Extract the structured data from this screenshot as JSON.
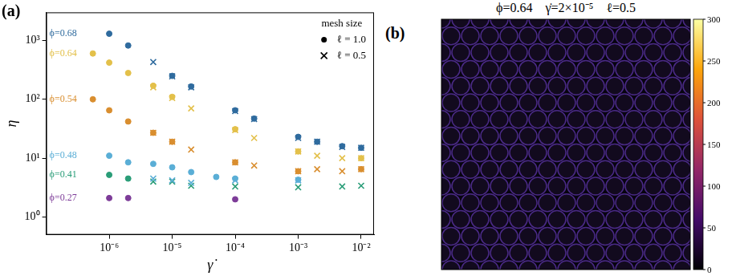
{
  "chart_data": [
    {
      "panel": "(a)",
      "type": "scatter",
      "x_label": "γ̇",
      "y_label": "η",
      "log": true,
      "grid": false,
      "xlim": [
        1e-07,
        0.016
      ],
      "ylim": [
        0.5,
        3000
      ],
      "xticks": [
        {
          "value": 1e-06,
          "label": "10⁻⁶"
        },
        {
          "value": 1e-05,
          "label": "10⁻⁵"
        },
        {
          "value": 0.0001,
          "label": "10⁻⁴"
        },
        {
          "value": 0.001,
          "label": "10⁻³"
        },
        {
          "value": 0.01,
          "label": "10⁻²"
        }
      ],
      "yticks": [
        {
          "value": 1,
          "label": "10⁰"
        },
        {
          "value": 10,
          "label": "10¹"
        },
        {
          "value": 100,
          "label": "10²"
        },
        {
          "value": 1000,
          "label": "10³"
        }
      ],
      "legend": "upper right",
      "legend_title": "mesh size",
      "legend_entries": [
        {
          "label": "ℓ = 1.0",
          "marker": "circle"
        },
        {
          "label": "ℓ = 0.5",
          "marker": "cross"
        }
      ],
      "series": [
        {
          "name": "ϕ=0.68",
          "color": "#2f6b9e",
          "marker": "circle",
          "x": [
            1e-06,
            2e-06,
            1e-05,
            2e-05,
            0.0001,
            0.0002,
            0.001,
            0.002,
            0.005,
            0.01
          ],
          "values": [
            1300,
            820,
            250,
            165,
            65,
            47,
            23,
            19,
            16,
            15
          ]
        },
        {
          "name": "ϕ=0.68",
          "color": "#2f6b9e",
          "marker": "cross",
          "x": [
            5e-06,
            1e-05,
            2e-05,
            0.0001,
            0.0002,
            0.001,
            0.002,
            0.005,
            0.01
          ],
          "values": [
            430,
            245,
            160,
            63,
            46,
            22,
            19,
            15.5,
            15
          ]
        },
        {
          "name": "ϕ=0.64",
          "color": "#e3c04a",
          "marker": "circle",
          "x": [
            5.5e-07,
            1e-06,
            2e-06,
            5e-06,
            1e-05,
            0.0001,
            0.001,
            0.01
          ],
          "values": [
            600,
            420,
            280,
            170,
            110,
            31,
            13,
            10
          ]
        },
        {
          "name": "ϕ=0.64",
          "color": "#e3c04a",
          "marker": "cross",
          "x": [
            5e-06,
            1e-05,
            2e-05,
            0.0001,
            0.0002,
            0.001,
            0.002,
            0.005,
            0.01
          ],
          "values": [
            160,
            105,
            70,
            30,
            22,
            13,
            11,
            10,
            10
          ]
        },
        {
          "name": "ϕ=0.54",
          "color": "#d98e2f",
          "marker": "circle",
          "x": [
            5.5e-07,
            1e-06,
            2e-06,
            5e-06,
            1e-05,
            0.0001,
            0.001,
            0.01
          ],
          "values": [
            100,
            65,
            42,
            27,
            19,
            8.5,
            6,
            6.5
          ]
        },
        {
          "name": "ϕ=0.54",
          "color": "#d98e2f",
          "marker": "cross",
          "x": [
            5e-06,
            1e-05,
            2e-05,
            0.0001,
            0.0002,
            0.001,
            0.002,
            0.005,
            0.01
          ],
          "values": [
            27,
            19,
            14,
            8.5,
            7.5,
            6,
            6.5,
            6,
            6.5
          ]
        },
        {
          "name": "ϕ=0.48",
          "color": "#5aaed6",
          "marker": "circle",
          "x": [
            1e-06,
            2e-06,
            5e-06,
            1e-05,
            2e-05,
            5e-05,
            0.0001,
            0.001
          ],
          "values": [
            11,
            8.5,
            8,
            7,
            5.8,
            4.8,
            4.5,
            4.3
          ]
        },
        {
          "name": "ϕ=0.48",
          "color": "#5aaed6",
          "marker": "cross",
          "x": [
            5e-06,
            1e-05,
            2e-05,
            0.0001,
            0.001
          ],
          "values": [
            4.5,
            4.2,
            3.8,
            4.2,
            4.2
          ]
        },
        {
          "name": "ϕ=0.41",
          "color": "#2a9d78",
          "marker": "circle",
          "x": [
            1e-06,
            2e-06
          ],
          "values": [
            5.2,
            4.5
          ]
        },
        {
          "name": "ϕ=0.41",
          "color": "#2a9d78",
          "marker": "cross",
          "x": [
            5e-06,
            1e-05,
            2e-05,
            0.0001,
            0.001,
            0.005,
            0.01
          ],
          "values": [
            4,
            4,
            3.4,
            3.3,
            3.2,
            3.3,
            3.4
          ]
        },
        {
          "name": "ϕ=0.27",
          "color": "#7d3c98",
          "marker": "circle",
          "x": [
            1e-06,
            2e-06,
            0.0001
          ],
          "values": [
            2.1,
            2.1,
            2.0
          ]
        }
      ]
    },
    {
      "panel": "(b)",
      "type": "image",
      "title": "ϕ=0.64    γ̇=2×10⁻⁵    ℓ=0.5",
      "colorbar": {
        "lim": [
          0,
          300
        ],
        "ticks": [
          0,
          50,
          100,
          150,
          200,
          250,
          300
        ]
      }
    }
  ]
}
